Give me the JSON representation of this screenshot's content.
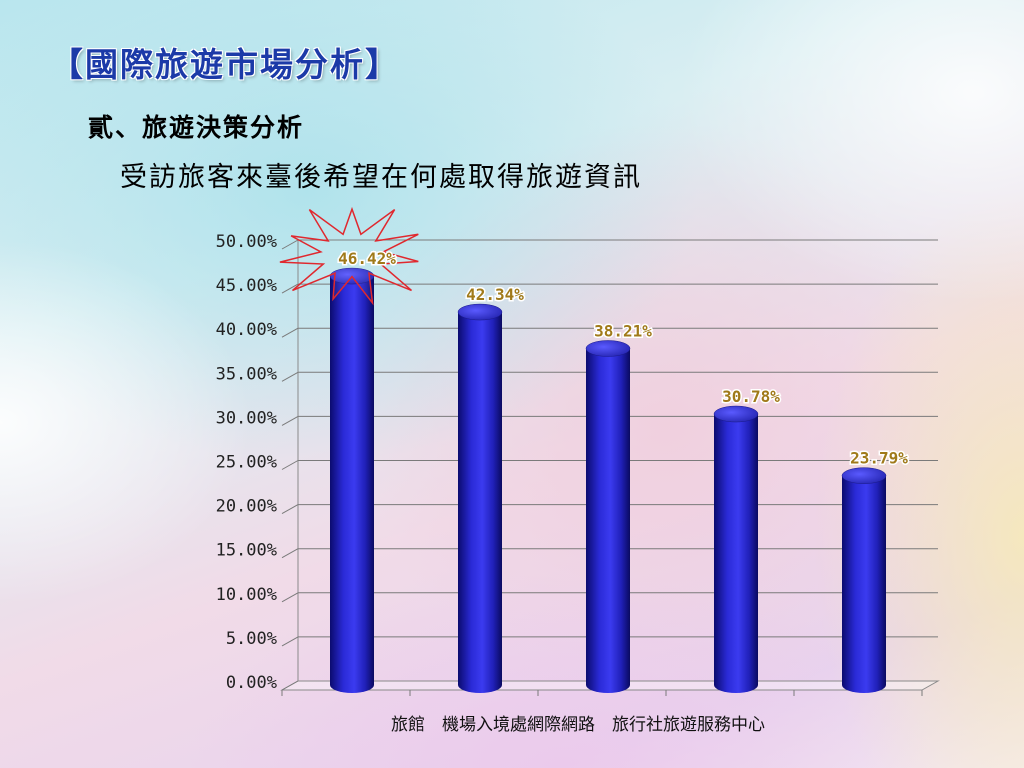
{
  "slide": {
    "title": "【國際旅遊市場分析】",
    "heading": "貳、旅遊決策分析",
    "subheading": "受訪旅客來臺後希望在何處取得旅遊資訊"
  },
  "chart_data": {
    "type": "bar",
    "categories": [
      "旅館",
      "機場入境處",
      "網際網路",
      "旅行社",
      "旅遊服務中心"
    ],
    "category_axis_text": "旅館　機場入境處網際網路　旅行社旅遊服務中心",
    "values": [
      46.42,
      42.34,
      38.21,
      30.78,
      23.79
    ],
    "value_labels": [
      "46.42%",
      "42.34%",
      "38.21%",
      "30.78%",
      "23.79%"
    ],
    "y_ticks": [
      "0.00%",
      "5.00%",
      "10.00%",
      "15.00%",
      "20.00%",
      "25.00%",
      "30.00%",
      "35.00%",
      "40.00%",
      "45.00%",
      "50.00%"
    ],
    "ylim": [
      0,
      50
    ],
    "grid": true,
    "bar_color": "#2424c8",
    "value_label_color": "#a07a1a",
    "highlight_color": "#e0282e"
  }
}
